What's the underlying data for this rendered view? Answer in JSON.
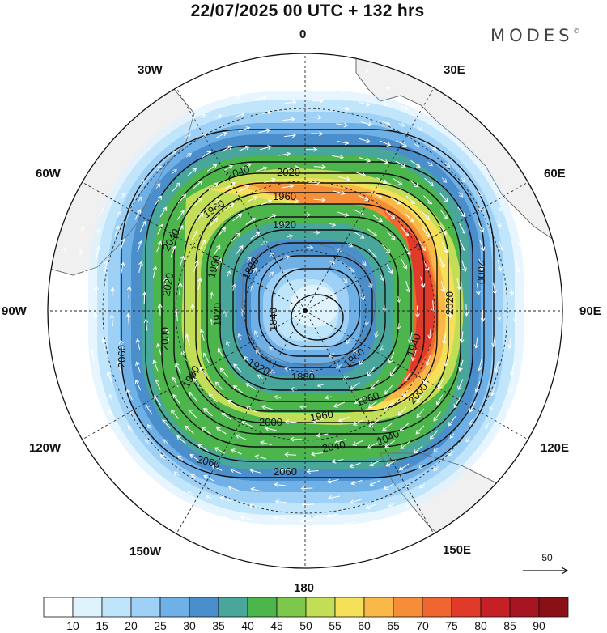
{
  "title": "22/07/2025  00 UTC  + 132 hrs",
  "brand": "MODES",
  "brand_mark": "©",
  "longitude_labels": {
    "lon_0": "0",
    "lon_30e": "30E",
    "lon_60e": "60E",
    "lon_90e": "90E",
    "lon_120e": "120E",
    "lon_150e": "150E",
    "lon_180": "180",
    "lon_150w": "150W",
    "lon_120w": "120W",
    "lon_90w": "90W",
    "lon_60w": "60W",
    "lon_30w": "30W"
  },
  "wind_reference": {
    "value": "50"
  },
  "colorbar": {
    "labels": [
      "10",
      "15",
      "20",
      "25",
      "30",
      "35",
      "40",
      "45",
      "50",
      "55",
      "60",
      "65",
      "70",
      "75",
      "80",
      "85",
      "90"
    ],
    "colors": [
      "#ffffff",
      "#dff3fd",
      "#bfe5fb",
      "#9ed1f5",
      "#6fb0e6",
      "#4a8fcb",
      "#48a69a",
      "#4cb54c",
      "#7dc84a",
      "#c2de56",
      "#f5e05a",
      "#f8b948",
      "#f58d39",
      "#ef6630",
      "#e03a2a",
      "#c71f26",
      "#a81522",
      "#8a1018"
    ]
  },
  "contour_labels": [
    "1840",
    "1860",
    "1880",
    "1900",
    "1920",
    "1940",
    "1960",
    "1980",
    "2000",
    "2020",
    "2040",
    "2060"
  ],
  "colors": {
    "land": "#f0f0f0",
    "coast": "#555555",
    "contour": "#111111",
    "arrows": "#ffffff"
  }
}
